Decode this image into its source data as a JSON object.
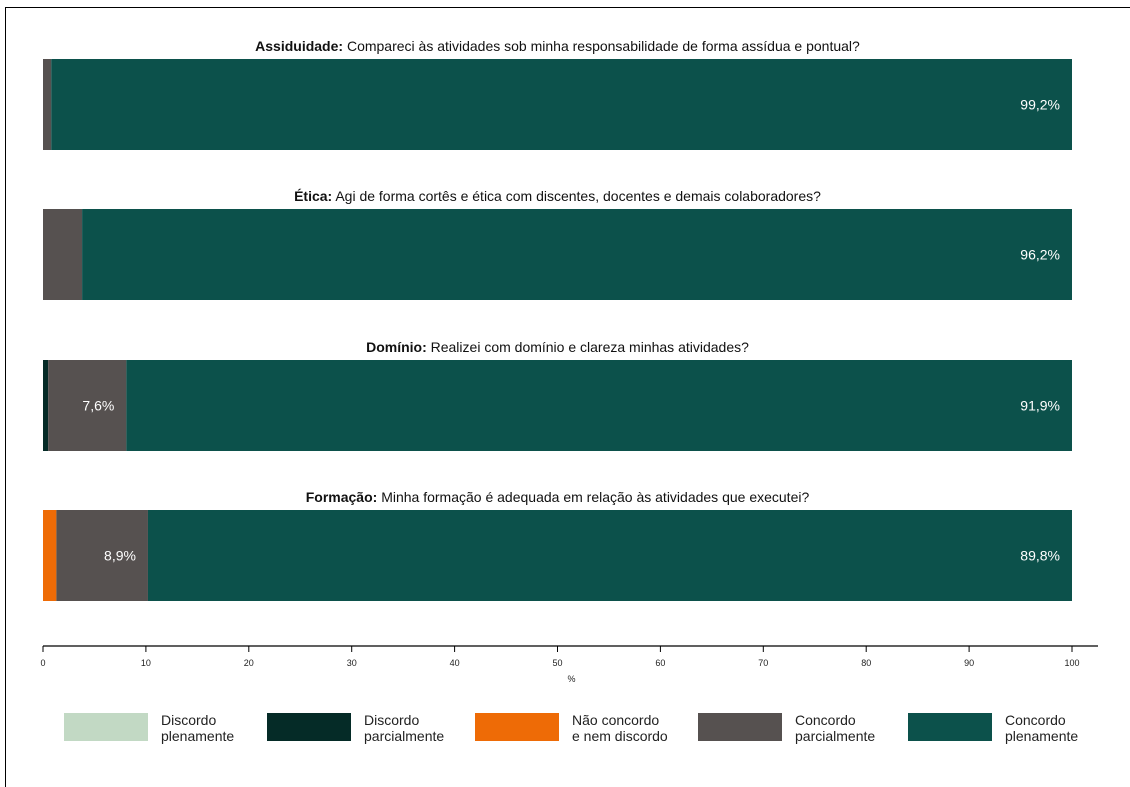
{
  "chart_data": {
    "type": "bar",
    "orientation": "horizontal",
    "stacked": true,
    "xlabel": "%",
    "xlim": [
      0,
      100
    ],
    "xticks": [
      "0",
      "10",
      "20",
      "30",
      "40",
      "50",
      "60",
      "70",
      "80",
      "90",
      "100"
    ],
    "legend_position": "bottom",
    "series": [
      {
        "name": "Discordo plenamente",
        "lines": [
          "Discordo",
          "plenamente"
        ],
        "color": "#c2d9c4"
      },
      {
        "name": "Discordo parcialmente",
        "lines": [
          "Discordo",
          "parcialmente"
        ],
        "color": "#052b27"
      },
      {
        "name": "Não concordo e nem discordo",
        "lines": [
          "Não concordo",
          "e nem discordo"
        ],
        "color": "#ee6b06"
      },
      {
        "name": "Concordo parcialmente",
        "lines": [
          "Concordo",
          "parcialmente"
        ],
        "color": "#565150"
      },
      {
        "name": "Concordo plenamente",
        "lines": [
          "Concordo",
          "plenamente"
        ],
        "color": "#0c514b"
      }
    ],
    "questions": [
      {
        "title_bold": "Assiduidade:",
        "title_rest": " Compareci às atividades sob minha responsabilidade de forma assídua e pontual?",
        "values": [
          0,
          0,
          0,
          0.8,
          99.2
        ],
        "labels": [
          "",
          "",
          "",
          "",
          "99,2%"
        ]
      },
      {
        "title_bold": "Ética:",
        "title_rest": " Agi de forma cortês e ética com discentes, docentes e demais colaboradores?",
        "values": [
          0,
          0,
          0,
          3.8,
          96.2
        ],
        "labels": [
          "",
          "",
          "",
          "",
          "96,2%"
        ]
      },
      {
        "title_bold": "Domínio:",
        "title_rest": " Realizei com domínio e clareza minhas atividades?",
        "values": [
          0,
          0.5,
          0,
          7.6,
          91.9
        ],
        "labels": [
          "",
          "",
          "",
          "7,6%",
          "91,9%"
        ]
      },
      {
        "title_bold": "Formação:",
        "title_rest": " Minha formação é adequada em relação às atividades que executei?",
        "values": [
          0,
          0,
          1.3,
          8.9,
          89.8
        ],
        "labels": [
          "",
          "",
          "",
          "8,9%",
          "89,8%"
        ]
      }
    ]
  }
}
